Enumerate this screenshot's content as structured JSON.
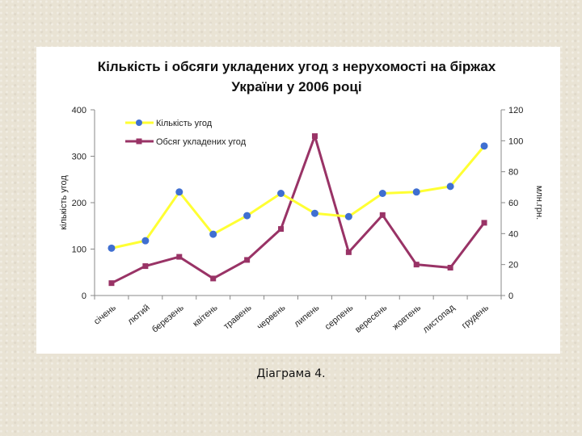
{
  "chart_data": {
    "type": "line",
    "title_line1": "Кількість і обсяги укладених угод з нерухомості на біржах",
    "title_line2": "України у 2006 році",
    "categories": [
      "січень",
      "лютий",
      "березень",
      "квітень",
      "травень",
      "червень",
      "липень",
      "серпень",
      "вересень",
      "жовтень",
      "листопад",
      "грудень"
    ],
    "y_left": {
      "label": "кількість угод",
      "range": [
        0,
        400
      ],
      "ticks": [
        0,
        100,
        200,
        300,
        400
      ]
    },
    "y_right": {
      "label": "млн.грн.",
      "range": [
        0,
        120
      ],
      "ticks": [
        0,
        20,
        40,
        60,
        80,
        100,
        120
      ]
    },
    "series": [
      {
        "name": "Кількість угод",
        "axis": "left",
        "color": "#ffff33",
        "marker_color": "#3f6fd1",
        "marker": "circle",
        "values": [
          102,
          118,
          223,
          132,
          172,
          220,
          177,
          170,
          220,
          223,
          235,
          322
        ]
      },
      {
        "name": "Обсяг укладених угод",
        "axis": "right",
        "color": "#993366",
        "marker_color": "#993366",
        "marker": "square",
        "values": [
          8,
          19,
          25,
          11,
          23,
          43,
          103,
          28,
          52,
          20,
          18,
          47
        ]
      }
    ],
    "grid": false,
    "legend_position": "top-left"
  },
  "caption": "Діаграма 4."
}
